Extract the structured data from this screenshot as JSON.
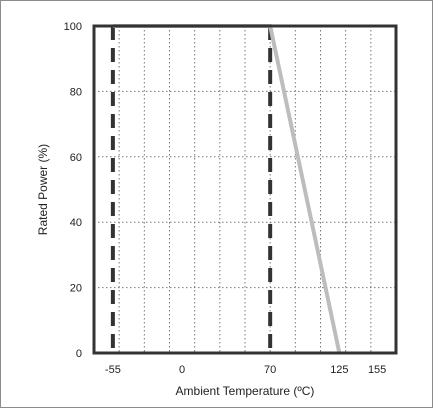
{
  "chart_data": {
    "type": "line",
    "title": "",
    "xlabel": "Ambient Temperature (ºC)",
    "ylabel": "Rated Power (%)",
    "xlim": [
      -70,
      170
    ],
    "ylim": [
      0,
      100
    ],
    "x_ticks": [
      -55,
      0,
      70,
      125,
      155
    ],
    "x_tick_labels": [
      "-55",
      "0",
      "70",
      "125",
      "155"
    ],
    "y_ticks": [
      0,
      20,
      40,
      60,
      80,
      100
    ],
    "y_tick_labels": [
      "0",
      "20",
      "40",
      "60",
      "80",
      "100"
    ],
    "grid": true,
    "series": [
      {
        "points": [
          [
            -55,
            100
          ],
          [
            70,
            100
          ],
          [
            125,
            0
          ]
        ],
        "color": "#bdbdbd"
      }
    ],
    "reference_lines": [
      {
        "x": -55,
        "style": "dashed",
        "color": "#333333"
      },
      {
        "x": 70,
        "style": "dashed",
        "color": "#333333"
      }
    ]
  }
}
